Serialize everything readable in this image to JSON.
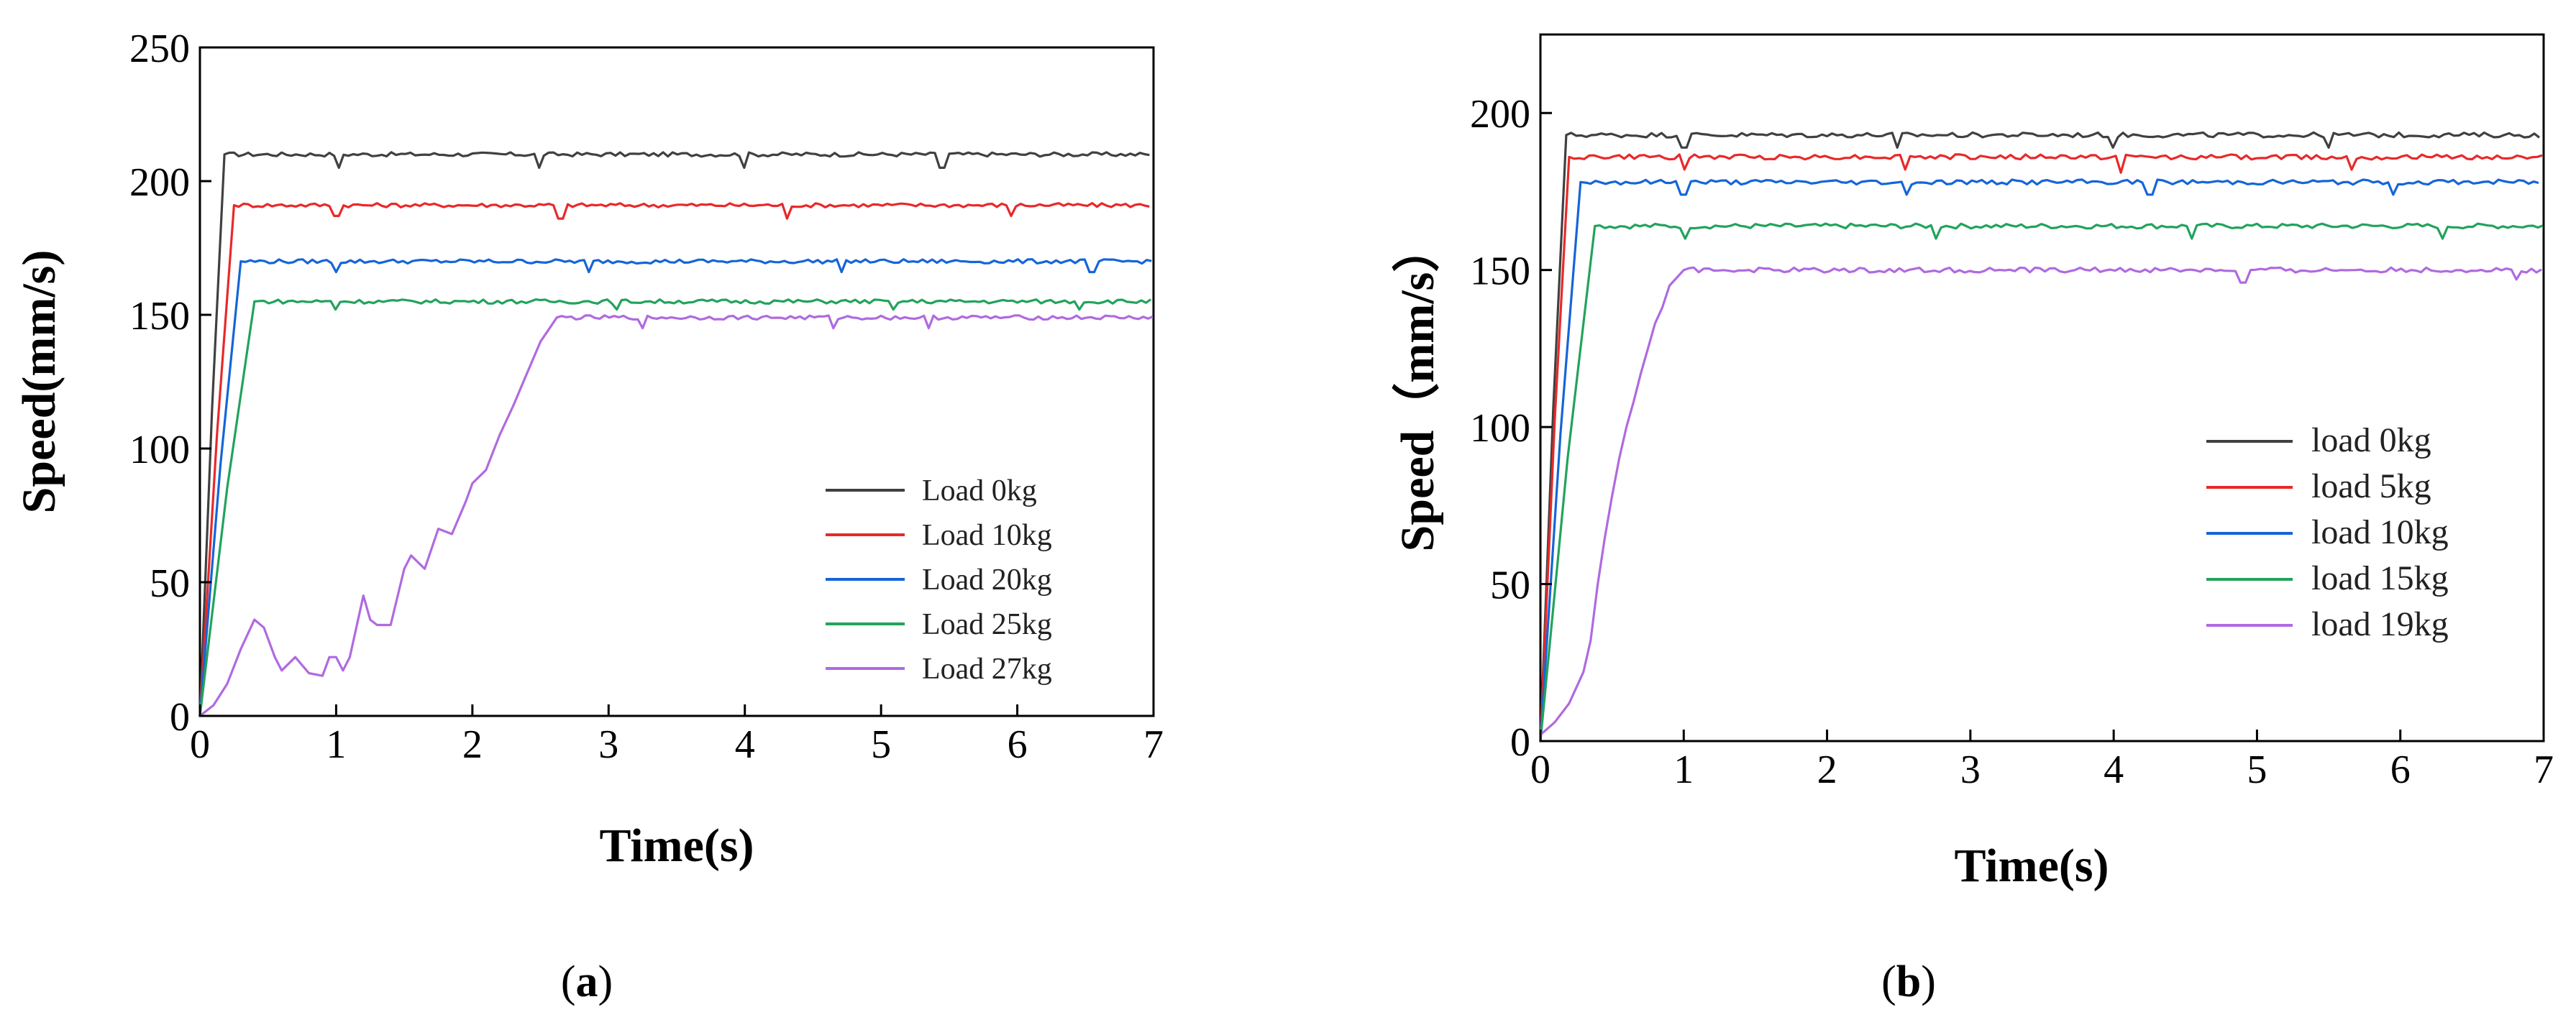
{
  "colors": {
    "gray": "#404040",
    "red": "#e8292a",
    "blue": "#1565d8",
    "green": "#22a35c",
    "purple": "#b06ae0"
  },
  "chart_data": [
    {
      "type": "line",
      "panel": "a",
      "xlabel": "Time(s)",
      "ylabel": "Speed(mm/s)",
      "xlim": [
        0,
        7
      ],
      "ylim": [
        0,
        250
      ],
      "xticks": [
        0,
        1,
        2,
        3,
        4,
        5,
        6,
        7
      ],
      "yticks": [
        0,
        50,
        100,
        150,
        200,
        250
      ],
      "legend_position": "bottom-right",
      "series": [
        {
          "name": "Load 0kg",
          "color": "gray",
          "rise_end": 0.18,
          "steady": 210,
          "dips": [
            [
              1.02,
              205
            ],
            [
              2.5,
              205
            ],
            [
              4.0,
              205
            ],
            [
              5.45,
              205
            ]
          ]
        },
        {
          "name": "Load 10kg",
          "color": "red",
          "rise_end": 0.25,
          "steady": 191,
          "dips": [
            [
              1.0,
              187
            ],
            [
              2.65,
              186
            ],
            [
              4.3,
              186
            ],
            [
              5.95,
              187
            ]
          ]
        },
        {
          "name": "Load 20kg",
          "color": "blue",
          "rise_end": 0.3,
          "steady": 170,
          "dips": [
            [
              1.0,
              166
            ],
            [
              2.85,
              166
            ],
            [
              4.7,
              166
            ],
            [
              6.55,
              166
            ]
          ]
        },
        {
          "name": "Load 25kg",
          "color": "green",
          "rise_end": 0.4,
          "steady": 155,
          "dips": [
            [
              1.0,
              152
            ],
            [
              3.05,
              152
            ],
            [
              5.1,
              152
            ],
            [
              6.45,
              152
            ]
          ]
        },
        {
          "name": "Load 27kg",
          "color": "purple",
          "rise_end": 2.62,
          "steady": 149,
          "dips": [
            [
              3.25,
              145
            ],
            [
              4.65,
              145
            ],
            [
              5.35,
              145
            ]
          ],
          "points": [
            [
              0,
              0
            ],
            [
              0.1,
              4
            ],
            [
              0.2,
              12
            ],
            [
              0.3,
              25
            ],
            [
              0.4,
              36
            ],
            [
              0.47,
              33
            ],
            [
              0.55,
              22
            ],
            [
              0.6,
              17
            ],
            [
              0.7,
              22
            ],
            [
              0.8,
              16
            ],
            [
              0.9,
              15
            ],
            [
              0.95,
              22
            ],
            [
              1.0,
              22
            ],
            [
              1.05,
              17
            ],
            [
              1.1,
              22
            ],
            [
              1.2,
              45
            ],
            [
              1.25,
              36
            ],
            [
              1.3,
              34
            ],
            [
              1.4,
              34
            ],
            [
              1.5,
              55
            ],
            [
              1.55,
              60
            ],
            [
              1.65,
              55
            ],
            [
              1.75,
              70
            ],
            [
              1.85,
              68
            ],
            [
              1.95,
              80
            ],
            [
              2.0,
              87
            ],
            [
              2.1,
              92
            ],
            [
              2.2,
              105
            ],
            [
              2.3,
              116
            ],
            [
              2.4,
              128
            ],
            [
              2.5,
              140
            ],
            [
              2.62,
              149
            ]
          ]
        }
      ]
    },
    {
      "type": "line",
      "panel": "b",
      "xlabel": "Time(s)",
      "ylabel": "Speed（mm/s）",
      "xlim": [
        0,
        7
      ],
      "ylim": [
        0,
        225
      ],
      "xticks": [
        0,
        1,
        2,
        3,
        4,
        5,
        6,
        7
      ],
      "yticks": [
        0,
        50,
        100,
        150,
        200
      ],
      "legend_position": "bottom-right",
      "series": [
        {
          "name": "load 0kg",
          "color": "gray",
          "rise_end": 0.18,
          "steady": 193,
          "dips": [
            [
              1.0,
              189
            ],
            [
              2.5,
              189
            ],
            [
              4.0,
              189
            ],
            [
              5.5,
              189
            ]
          ]
        },
        {
          "name": "load 5kg",
          "color": "red",
          "rise_end": 0.2,
          "steady": 186,
          "dips": [
            [
              1.0,
              182
            ],
            [
              2.55,
              182
            ],
            [
              4.05,
              181
            ],
            [
              5.65,
              182
            ]
          ]
        },
        {
          "name": "load 10kg",
          "color": "blue",
          "rise_end": 0.28,
          "steady": 178,
          "dips": [
            [
              1.0,
              174
            ],
            [
              2.55,
              174
            ],
            [
              4.25,
              174
            ],
            [
              5.95,
              174
            ]
          ]
        },
        {
          "name": "load 15kg",
          "color": "green",
          "rise_end": 0.38,
          "steady": 164,
          "dips": [
            [
              1.0,
              160
            ],
            [
              2.75,
              160
            ],
            [
              4.55,
              160
            ],
            [
              6.3,
              160
            ]
          ]
        },
        {
          "name": "load 19kg",
          "color": "purple",
          "rise_end": 1.0,
          "steady": 150,
          "dips": [
            [
              4.9,
              146
            ],
            [
              6.8,
              147
            ]
          ],
          "points": [
            [
              0,
              2
            ],
            [
              0.1,
              6
            ],
            [
              0.2,
              12
            ],
            [
              0.3,
              22
            ],
            [
              0.35,
              32
            ],
            [
              0.4,
              50
            ],
            [
              0.45,
              65
            ],
            [
              0.5,
              78
            ],
            [
              0.55,
              90
            ],
            [
              0.6,
              100
            ],
            [
              0.65,
              108
            ],
            [
              0.7,
              117
            ],
            [
              0.75,
              125
            ],
            [
              0.8,
              133
            ],
            [
              0.85,
              138
            ],
            [
              0.9,
              145
            ],
            [
              1.0,
              150
            ]
          ]
        }
      ]
    }
  ],
  "captions": {
    "a": "(a)",
    "b": "(b)"
  }
}
